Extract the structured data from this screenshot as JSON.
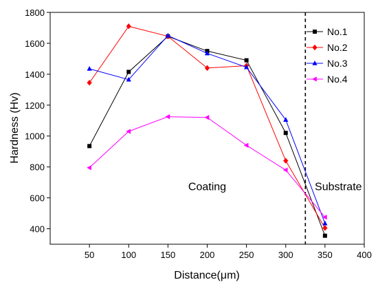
{
  "chart_data": {
    "type": "line",
    "xlabel": "Distance(μm)",
    "ylabel": "Hardness (Hv)",
    "xlim": [
      0,
      400
    ],
    "ylim": [
      300,
      1800
    ],
    "x_ticks": [
      "50",
      "100",
      "150",
      "200",
      "250",
      "300",
      "350",
      "400"
    ],
    "y_ticks": [
      "400",
      "600",
      "800",
      "1000",
      "1200",
      "1400",
      "1600",
      "1800"
    ],
    "x": [
      50,
      100,
      150,
      200,
      250,
      300,
      350
    ],
    "series": [
      {
        "name": "No.1",
        "color": "#000000",
        "marker": "square",
        "values": [
          935,
          1415,
          1645,
          1550,
          1490,
          1020,
          355
        ]
      },
      {
        "name": "No.2",
        "color": "#ff0000",
        "marker": "diamond",
        "values": [
          1345,
          1710,
          1645,
          1440,
          1455,
          840,
          405
        ]
      },
      {
        "name": "No.3",
        "color": "#0000ff",
        "marker": "triangle-up",
        "values": [
          1435,
          1365,
          1650,
          1535,
          1445,
          1105,
          435
        ]
      },
      {
        "name": "No.4",
        "color": "#ff00ff",
        "marker": "triangle-left",
        "values": [
          795,
          1030,
          1125,
          1120,
          940,
          780,
          475
        ]
      }
    ],
    "divider": {
      "x": 325,
      "style": "dashed"
    },
    "annotations": [
      {
        "text": "Coating",
        "x": 200,
        "y": 650
      },
      {
        "text": "Substrate",
        "x": 367,
        "y": 650
      }
    ],
    "legend": "top-right",
    "grid": false
  }
}
